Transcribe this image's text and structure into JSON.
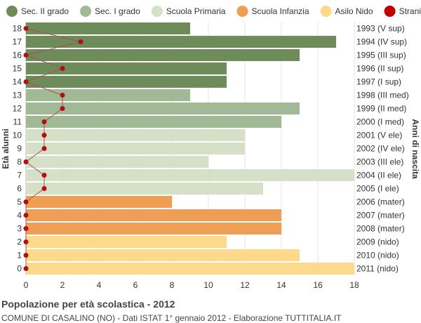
{
  "chart_data": {
    "type": "bar",
    "orientation": "horizontal",
    "title": "Popolazione per età scolastica - 2012",
    "subtitle": "COMUNE DI CASALINO (NO) - Dati ISTAT 1° gennaio 2012 - Elaborazione TUTTITALIA.IT",
    "ylabel": "Età alunni",
    "ylabel_right": "Anni di nascita",
    "xlim": [
      0,
      18
    ],
    "xticks": [
      "0",
      "2",
      "4",
      "6",
      "8",
      "10",
      "12",
      "14",
      "16",
      "18"
    ],
    "grid": true,
    "legend_position": "top",
    "legend": [
      {
        "name": "Sec. II grado",
        "color": "#6e8c5a"
      },
      {
        "name": "Sec. I grado",
        "color": "#a1b994"
      },
      {
        "name": "Scuola Primaria",
        "color": "#d5e0c6"
      },
      {
        "name": "Scuola Infanzia",
        "color": "#ee9f55"
      },
      {
        "name": "Asilo Nido",
        "color": "#fcd98b"
      },
      {
        "name": "Stranieri",
        "color": "#c00000"
      }
    ],
    "rows": [
      {
        "age": "18",
        "birth": "1993 (V sup)",
        "value": 9,
        "stranieri": 0,
        "group": 0
      },
      {
        "age": "17",
        "birth": "1994 (IV sup)",
        "value": 17,
        "stranieri": 3,
        "group": 0
      },
      {
        "age": "16",
        "birth": "1995 (III sup)",
        "value": 15,
        "stranieri": 0,
        "group": 0
      },
      {
        "age": "15",
        "birth": "1996 (II sup)",
        "value": 11,
        "stranieri": 2,
        "group": 0
      },
      {
        "age": "14",
        "birth": "1997 (I sup)",
        "value": 11,
        "stranieri": 0,
        "group": 0
      },
      {
        "age": "13",
        "birth": "1998 (III med)",
        "value": 9,
        "stranieri": 2,
        "group": 1
      },
      {
        "age": "12",
        "birth": "1999 (II med)",
        "value": 15,
        "stranieri": 2,
        "group": 1
      },
      {
        "age": "11",
        "birth": "2000 (I med)",
        "value": 14,
        "stranieri": 1,
        "group": 1
      },
      {
        "age": "10",
        "birth": "2001 (V ele)",
        "value": 12,
        "stranieri": 1,
        "group": 2
      },
      {
        "age": "9",
        "birth": "2002 (IV ele)",
        "value": 12,
        "stranieri": 1,
        "group": 2
      },
      {
        "age": "8",
        "birth": "2003 (III ele)",
        "value": 10,
        "stranieri": 0,
        "group": 2
      },
      {
        "age": "7",
        "birth": "2004 (II ele)",
        "value": 18,
        "stranieri": 1,
        "group": 2
      },
      {
        "age": "6",
        "birth": "2005 (I ele)",
        "value": 13,
        "stranieri": 1,
        "group": 2
      },
      {
        "age": "5",
        "birth": "2006 (mater)",
        "value": 8,
        "stranieri": 0,
        "group": 3
      },
      {
        "age": "4",
        "birth": "2007 (mater)",
        "value": 14,
        "stranieri": 0,
        "group": 3
      },
      {
        "age": "3",
        "birth": "2008 (mater)",
        "value": 14,
        "stranieri": 0,
        "group": 3
      },
      {
        "age": "2",
        "birth": "2009 (nido)",
        "value": 11,
        "stranieri": 0,
        "group": 4
      },
      {
        "age": "1",
        "birth": "2010 (nido)",
        "value": 15,
        "stranieri": 0,
        "group": 4
      },
      {
        "age": "0",
        "birth": "2011 (nido)",
        "value": 18,
        "stranieri": 0,
        "group": 4
      }
    ]
  }
}
